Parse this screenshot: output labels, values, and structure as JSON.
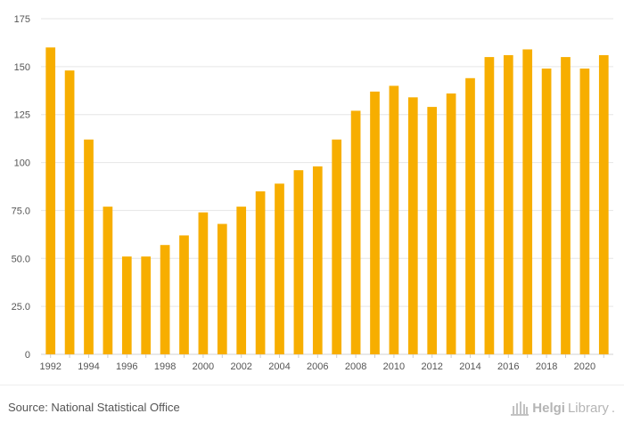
{
  "chart_data": {
    "type": "bar",
    "categories": [
      "1992",
      "1993",
      "1994",
      "1995",
      "1996",
      "1997",
      "1998",
      "1999",
      "2000",
      "2001",
      "2002",
      "2003",
      "2004",
      "2005",
      "2006",
      "2007",
      "2008",
      "2009",
      "2010",
      "2011",
      "2012",
      "2013",
      "2014",
      "2015",
      "2016",
      "2017",
      "2018",
      "2019",
      "2020",
      "2021"
    ],
    "values": [
      160,
      148,
      112,
      77,
      51,
      51,
      57,
      62,
      74,
      68,
      77,
      85,
      89,
      96,
      98,
      112,
      127,
      137,
      140,
      134,
      129,
      136,
      144,
      155,
      156,
      159,
      149,
      155,
      149,
      156
    ],
    "x_tick_labels": [
      "1992",
      "",
      "1994",
      "",
      "1996",
      "",
      "1998",
      "",
      "2000",
      "",
      "2002",
      "",
      "2004",
      "",
      "2006",
      "",
      "2008",
      "",
      "2010",
      "",
      "2012",
      "",
      "2014",
      "",
      "2016",
      "",
      "2018",
      "",
      "2020",
      ""
    ],
    "y_ticks": [
      0,
      25,
      50,
      75,
      100,
      125,
      150,
      175
    ],
    "y_tick_labels": [
      "0",
      "25.0",
      "50.0",
      "75.0",
      "100",
      "125",
      "150",
      "175"
    ],
    "ylim": [
      0,
      175
    ],
    "title": "",
    "xlabel": "",
    "ylabel": "",
    "grid": true,
    "bar_color": "#f7ae00"
  },
  "footer": {
    "source": "Source: National Statistical Office",
    "brand_part1": "Helgi",
    "brand_part2": "Library",
    "brand_suffix": "."
  }
}
